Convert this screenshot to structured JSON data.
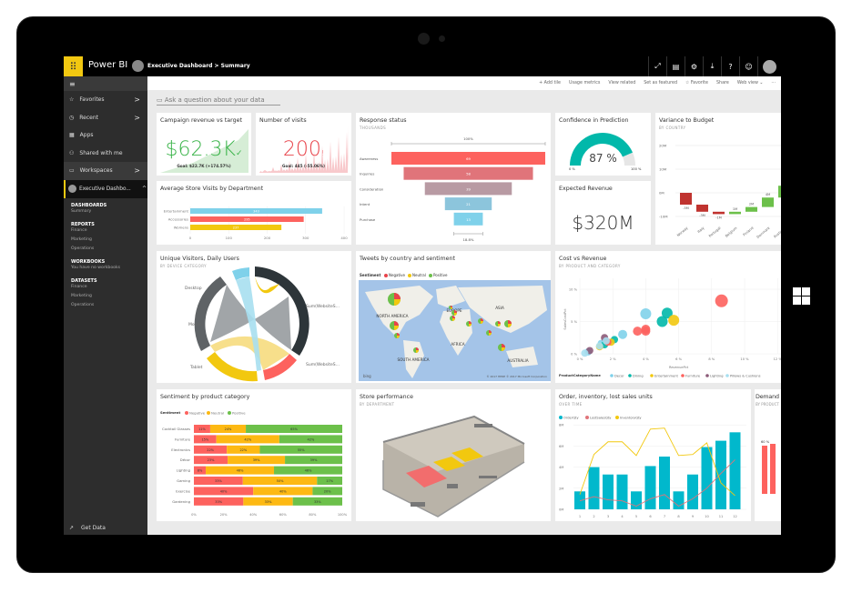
{
  "topbar": {
    "app_name": "Power BI",
    "workspace": "Executive Dashboard",
    "separator": ">",
    "page": "Summary",
    "icons": [
      "fullscreen-icon",
      "comment-icon",
      "gear-icon",
      "download-icon",
      "help-icon",
      "smiley-icon",
      "user-avatar-icon"
    ],
    "icon_glyphs": [
      "⤢",
      "▤",
      "⚙",
      "⤓",
      "?",
      "☺",
      ""
    ]
  },
  "sidebar": {
    "items": [
      {
        "label": "Favorites",
        "icon": "☆",
        "chevron": ">"
      },
      {
        "label": "Recent",
        "icon": "◷",
        "chevron": ">"
      },
      {
        "label": "Apps",
        "icon": "▦"
      },
      {
        "label": "Shared with me",
        "icon": "⚇"
      },
      {
        "label": "Workspaces",
        "icon": "▭",
        "chevron": ">"
      }
    ],
    "active": {
      "label": "Executive Dashbo...",
      "chevron": "^"
    },
    "sections": [
      {
        "title": "DASHBOARDS",
        "items": [
          "Summary"
        ]
      },
      {
        "title": "REPORTS",
        "items": [
          "Finance",
          "Marketing",
          "Operations"
        ]
      },
      {
        "title": "WORKBOOKS",
        "items": [
          "You have no workbooks"
        ]
      },
      {
        "title": "DATASETS",
        "items": [
          "Finance",
          "Marketing",
          "Operations"
        ]
      }
    ],
    "get_data": "Get Data"
  },
  "toolbar": [
    "+ Add tile",
    "Usage metrics",
    "View related",
    "Set as featured",
    "☆ Favorite",
    "Share",
    "Web view ⌄",
    "···"
  ],
  "qa": {
    "placeholder": "Ask a question about your data"
  },
  "tiles": {
    "campaign": {
      "title": "Campaign revenue vs target",
      "value": "$62.3K",
      "goal": "Goal: $22.7K (+174.57%)",
      "color": "#3bb44a"
    },
    "visits": {
      "title": "Number of visits",
      "value": "200",
      "goal": "Goal: 445 (-55.06%)",
      "color": "#e8434a"
    },
    "response": {
      "title": "Response status",
      "subtitle": "THOUSANDS"
    },
    "confidence": {
      "title": "Confidence in Prediction",
      "value": "87 %",
      "min": "0 %",
      "max": "100 %",
      "fraction": 0.87,
      "color": "#01b8aa"
    },
    "variance": {
      "title": "Variance to Budget",
      "subtitle": "BY COUNTRY"
    },
    "avgvisits": {
      "title": "Average Store Visits by Department"
    },
    "expected": {
      "title": "Expected Revenue",
      "value": "$320M"
    },
    "unique": {
      "title": "Unique Visitors, Daily Users",
      "subtitle": "BY DEVICE CATEGORY",
      "labels": [
        "Desktop",
        "Mobile",
        "Tablet",
        "Sum(WebsiteS...",
        "Sum(WebsiteS..."
      ]
    },
    "tweets": {
      "title": "Tweets by country and sentiment",
      "legend_title": "Sentiment",
      "legend": [
        "Negative",
        "Neutral",
        "Positive"
      ],
      "regions": [
        "NORTH AMERICA",
        "EUROPE",
        "ASIA",
        "AFRICA",
        "SOUTH AMERICA",
        "AUSTRALIA"
      ],
      "copyright": "© 2017 HERE   © 2017 Microsoft Corporation",
      "bing": "bing"
    },
    "cost": {
      "title": "Cost vs Revenue",
      "subtitle": "BY PRODUCT AND CATEGORY"
    },
    "sentiment": {
      "title": "Sentiment by product category"
    },
    "store": {
      "title": "Store performance",
      "subtitle": "BY DEPARTMENT"
    },
    "order": {
      "title": "Order, inventory, lost sales units",
      "subtitle": "OVER TIME"
    },
    "demand": {
      "title": "Demand",
      "subtitle": "BY PRODUCT",
      "label": "60 %"
    }
  },
  "chart_data": [
    {
      "id": "response",
      "type": "funnel",
      "categories": [
        "Awareness",
        "Inquiries",
        "Consideration",
        "Intent",
        "Purchase"
      ],
      "values": [
        69,
        58,
        39,
        21,
        13
      ],
      "top_label": "100%",
      "bottom_label": "18.8%",
      "colors": [
        "#fd625e",
        "#e0747a",
        "#b89aa3",
        "#8cc5dc",
        "#7fd1ea"
      ]
    },
    {
      "id": "variance",
      "type": "waterfall",
      "categories": [
        "Norway",
        "Italy",
        "Portugal",
        "Belgium",
        "Finland",
        "Denmark",
        "Australia"
      ],
      "values": [
        -5,
        -3,
        -1,
        1,
        2,
        4,
        5
      ],
      "value_labels": [
        "-5M",
        "-3M",
        "-1M",
        "1M",
        "2M",
        "4M",
        ""
      ],
      "yticks": [
        "20M",
        "10M",
        "0M",
        "-10M"
      ],
      "ylim": [
        -10,
        20
      ],
      "colors": {
        "neg": "#c0332f",
        "pos": "#6cc04a"
      }
    },
    {
      "id": "avgvisits",
      "type": "bar",
      "orientation": "horizontal",
      "categories": [
        "Entertainment",
        "Accessories",
        "Womens"
      ],
      "values": [
        343,
        295,
        237
      ],
      "xticks": [
        0,
        100,
        200,
        300,
        400
      ],
      "xlim": [
        0,
        400
      ],
      "colors": [
        "#7fd1ea",
        "#fd625e",
        "#f2c80f"
      ]
    },
    {
      "id": "cost",
      "type": "scatter",
      "xlabel": "RevenuePct",
      "ylabel": "SalesCostPct",
      "xlim": [
        0,
        12
      ],
      "ylim": [
        0,
        10
      ],
      "xticks": [
        "0 %",
        "2 %",
        "4 %",
        "6 %",
        "8 %",
        "10 %",
        "12 %"
      ],
      "yticks": [
        "0 %",
        "5 %",
        "10 %"
      ],
      "legend_title": "ProductCategoryName",
      "series": [
        {
          "name": "Decor",
          "color": "#7fd1ea",
          "points": [
            [
              4.0,
              6.2,
              5
            ],
            [
              2.6,
              3.0,
              4
            ],
            [
              1.3,
              1.6,
              3
            ],
            [
              0.5,
              0.3,
              3
            ]
          ]
        },
        {
          "name": "Dining",
          "color": "#01b8aa",
          "points": [
            [
              5.3,
              6.3,
              5
            ],
            [
              5.0,
              5.0,
              5
            ],
            [
              2.1,
              2.2,
              3
            ],
            [
              1.5,
              1.4,
              3
            ]
          ]
        },
        {
          "name": "Entertainment",
          "color": "#f2c80f",
          "points": [
            [
              5.7,
              5.2,
              5
            ],
            [
              1.9,
              1.8,
              3
            ],
            [
              1.2,
              1.1,
              3
            ]
          ]
        },
        {
          "name": "Furniture",
          "color": "#fd625e",
          "points": [
            [
              8.6,
              8.2,
              6
            ],
            [
              3.5,
              3.5,
              4
            ],
            [
              4.0,
              3.8,
              4
            ],
            [
              4.0,
              3.5,
              4
            ],
            [
              1.7,
              1.8,
              3
            ]
          ]
        },
        {
          "name": "Lighting",
          "color": "#8c5a78",
          "points": [
            [
              1.5,
              2.5,
              3
            ],
            [
              0.6,
              0.5,
              3
            ]
          ]
        },
        {
          "name": "Pillows & Cushions",
          "color": "#a7dff0",
          "points": [
            [
              1.6,
              2.0,
              3
            ],
            [
              1.2,
              1.2,
              3
            ],
            [
              0.3,
              0.1,
              3
            ]
          ]
        }
      ]
    },
    {
      "id": "sentiment",
      "type": "stacked-bar",
      "orientation": "horizontal",
      "legend_title": "Sentiment",
      "categories": [
        "Cocktail Glasses",
        "Furniture",
        "Electronics",
        "Décor",
        "Lighting",
        "Gaming",
        "Exercise",
        "Gardening"
      ],
      "series": [
        {
          "name": "Negative",
          "color": "#fd625e",
          "values": [
            11,
            15,
            22,
            23,
            8,
            33,
            40,
            33
          ]
        },
        {
          "name": "Neutral",
          "color": "#fdb913",
          "values": [
            24,
            42,
            22,
            39,
            46,
            50,
            40,
            33
          ]
        },
        {
          "name": "Positive",
          "color": "#6cc04a",
          "values": [
            65,
            42,
            55,
            39,
            46,
            17,
            20,
            33
          ]
        }
      ],
      "xticks": [
        "0%",
        "20%",
        "40%",
        "60%",
        "80%",
        "100%"
      ]
    },
    {
      "id": "order",
      "type": "combo",
      "categories": [
        1,
        2,
        3,
        4,
        5,
        6,
        7,
        8,
        9,
        10,
        11,
        12
      ],
      "ylim": [
        0,
        8
      ],
      "yticks": [
        "0M",
        "2M",
        "4M",
        "6M",
        "8M"
      ],
      "series": [
        {
          "name": "OrderQty",
          "kind": "bar",
          "color": "#01b8cc",
          "values": [
            1.7,
            4.0,
            3.3,
            3.3,
            1.7,
            4.1,
            5.0,
            1.7,
            3.3,
            5.9,
            6.5,
            7.3
          ]
        },
        {
          "name": "LostSalesQty",
          "kind": "line",
          "color": "#e0747a",
          "values": [
            0.8,
            1.2,
            0.9,
            0.8,
            0.3,
            1.0,
            1.4,
            0.3,
            1.0,
            2.0,
            3.4,
            4.7
          ]
        },
        {
          "name": "InventoryQty",
          "kind": "line",
          "color": "#f2c80f",
          "values": [
            1.4,
            5.2,
            6.4,
            6.4,
            5.1,
            7.6,
            7.7,
            5.1,
            5.2,
            6.3,
            2.5,
            1.3
          ]
        }
      ]
    }
  ]
}
